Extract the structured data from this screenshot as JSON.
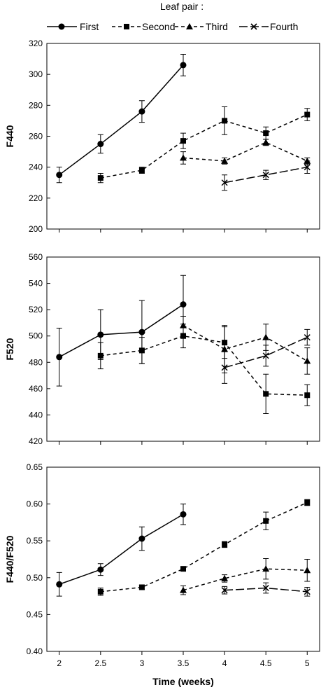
{
  "legend": {
    "title": "Leaf pair :",
    "entries": [
      "First",
      "Second",
      "Third",
      "Fourth"
    ]
  },
  "xlabel": "Time (weeks)",
  "x_ticks": [
    "2",
    "2.5",
    "3",
    "3.5",
    "4",
    "4.5",
    "5"
  ],
  "chart_data": [
    {
      "type": "line",
      "ylabel": "F440",
      "ylim": [
        200,
        320
      ],
      "yticks": [
        "200",
        "220",
        "240",
        "260",
        "280",
        "300",
        "320"
      ],
      "xlim": [
        1.85,
        5.15
      ],
      "grid": false,
      "legend_position": "top",
      "series": [
        {
          "name": "First",
          "marker": "circle",
          "dash": "solid",
          "x": [
            2,
            2.5,
            3,
            3.5
          ],
          "y": [
            235,
            255,
            276,
            306
          ],
          "err": [
            5,
            6,
            7,
            7
          ]
        },
        {
          "name": "Second",
          "marker": "square",
          "dash": "dash",
          "x": [
            2.5,
            3,
            3.5,
            4,
            4.5,
            5
          ],
          "y": [
            233,
            238,
            257,
            270,
            262,
            274
          ],
          "err": [
            3,
            2,
            5,
            9,
            4,
            4
          ]
        },
        {
          "name": "Third",
          "marker": "triangle",
          "dash": "dash",
          "x": [
            3.5,
            4,
            4.5,
            5
          ],
          "y": [
            246,
            244,
            256,
            244
          ],
          "err": [
            4,
            2,
            2,
            2
          ]
        },
        {
          "name": "Fourth",
          "marker": "x",
          "dash": "longdash",
          "x": [
            4,
            4.5,
            5
          ],
          "y": [
            230,
            235,
            240
          ],
          "err": [
            5,
            3,
            4
          ]
        }
      ]
    },
    {
      "type": "line",
      "ylabel": "F520",
      "ylim": [
        420,
        560
      ],
      "yticks": [
        "420",
        "440",
        "460",
        "480",
        "500",
        "520",
        "540",
        "560"
      ],
      "xlim": [
        1.85,
        5.15
      ],
      "grid": false,
      "series": [
        {
          "name": "First",
          "marker": "circle",
          "dash": "solid",
          "x": [
            2,
            2.5,
            3,
            3.5
          ],
          "y": [
            484,
            501,
            503,
            524
          ],
          "err": [
            22,
            19,
            24,
            22
          ]
        },
        {
          "name": "Second",
          "marker": "square",
          "dash": "dash",
          "x": [
            2.5,
            3,
            3.5,
            4,
            4.5,
            5
          ],
          "y": [
            485,
            489,
            500,
            495,
            456,
            455
          ],
          "err": [
            10,
            10,
            9,
            12,
            15,
            8
          ]
        },
        {
          "name": "Third",
          "marker": "triangle",
          "dash": "dash",
          "x": [
            3.5,
            4,
            4.5,
            5
          ],
          "y": [
            508,
            490,
            499,
            481
          ],
          "err": [
            7,
            18,
            10,
            10
          ]
        },
        {
          "name": "Fourth",
          "marker": "x",
          "dash": "longdash",
          "x": [
            4,
            4.5,
            5
          ],
          "y": [
            476,
            485,
            499
          ],
          "err": [
            12,
            8,
            6
          ]
        }
      ]
    },
    {
      "type": "line",
      "ylabel": "F440/F520",
      "ylim": [
        0.4,
        0.65
      ],
      "yticks": [
        "0.40",
        "0.45",
        "0.50",
        "0.55",
        "0.60",
        "0.65"
      ],
      "xlim": [
        1.85,
        5.15
      ],
      "grid": false,
      "series": [
        {
          "name": "First",
          "marker": "circle",
          "dash": "solid",
          "x": [
            2,
            2.5,
            3,
            3.5
          ],
          "y": [
            0.491,
            0.511,
            0.553,
            0.586
          ],
          "err": [
            0.016,
            0.008,
            0.016,
            0.014
          ]
        },
        {
          "name": "Second",
          "marker": "square",
          "dash": "dash",
          "x": [
            2.5,
            3,
            3.5,
            4,
            4.5,
            5
          ],
          "y": [
            0.481,
            0.487,
            0.512,
            0.545,
            0.577,
            0.602
          ],
          "err": [
            0.005,
            0.003,
            0.003,
            0.004,
            0.012,
            0.004
          ]
        },
        {
          "name": "Third",
          "marker": "triangle",
          "dash": "dash",
          "x": [
            3.5,
            4,
            4.5,
            5
          ],
          "y": [
            0.483,
            0.499,
            0.512,
            0.51
          ],
          "err": [
            0.006,
            0.005,
            0.014,
            0.015
          ]
        },
        {
          "name": "Fourth",
          "marker": "x",
          "dash": "longdash",
          "x": [
            4,
            4.5,
            5
          ],
          "y": [
            0.483,
            0.486,
            0.481
          ],
          "err": [
            0.005,
            0.007,
            0.006
          ]
        }
      ]
    }
  ]
}
